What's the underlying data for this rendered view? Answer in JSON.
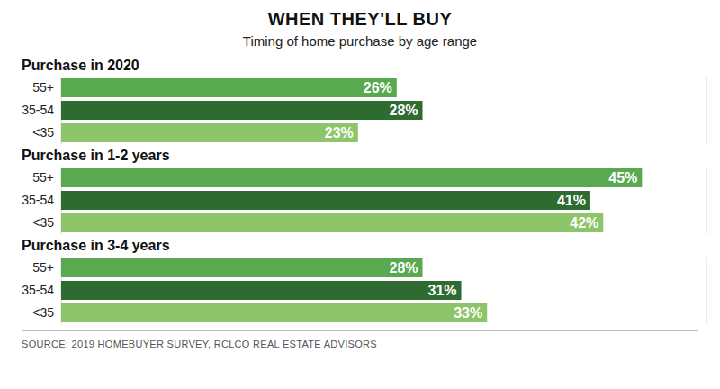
{
  "chart_data": {
    "type": "bar",
    "orientation": "horizontal",
    "title": "WHEN THEY'LL BUY",
    "subtitle": "Timing of home purchase by age range",
    "source": "SOURCE: 2019 HOMEBUYER SURVEY, RCLCO REAL ESTATE ADVISORS",
    "data_labels": true,
    "grid": true,
    "tick_labels": "y",
    "xlim": [
      0,
      50
    ],
    "xticks": [
      0,
      12.5,
      25,
      37.5,
      50
    ],
    "colors": [
      "#58a94f",
      "#2e6b31",
      "#8ec46a"
    ],
    "panels": [
      {
        "title": "Purchase in 2020",
        "categories": [
          "55+",
          "35-54",
          "<35"
        ],
        "values": [
          26,
          28,
          23
        ],
        "value_labels": [
          "26%",
          "28%",
          "23%"
        ]
      },
      {
        "title": "Purchase in 1-2 years",
        "categories": [
          "55+",
          "35-54",
          "<35"
        ],
        "values": [
          45,
          41,
          42
        ],
        "value_labels": [
          "45%",
          "41%",
          "42%"
        ]
      },
      {
        "title": "Purchase in 3-4 years",
        "categories": [
          "55+",
          "35-54",
          "<35"
        ],
        "values": [
          28,
          31,
          33
        ],
        "value_labels": [
          "28%",
          "31%",
          "33%"
        ]
      }
    ]
  }
}
